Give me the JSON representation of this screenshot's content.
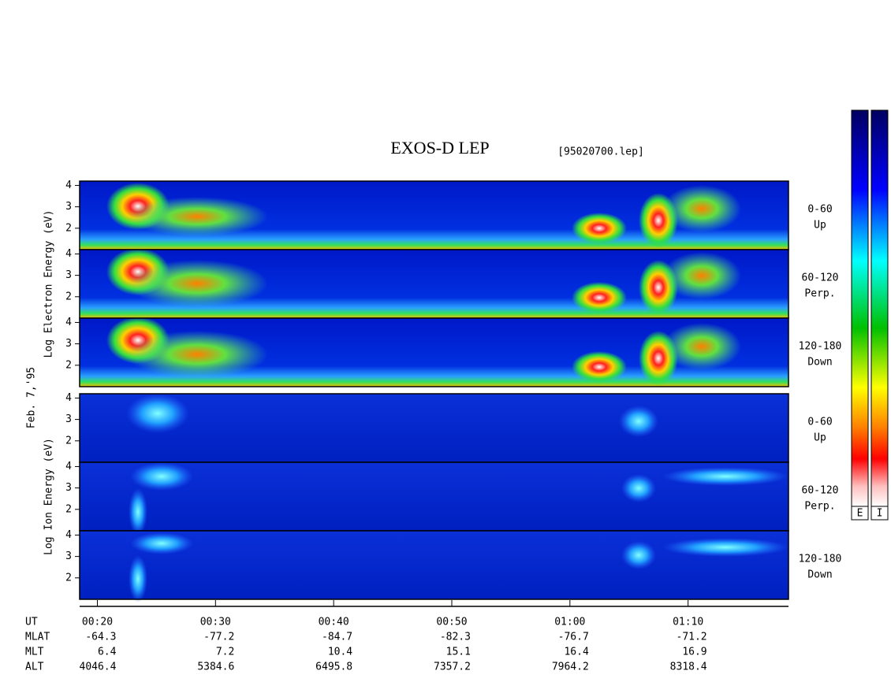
{
  "chart_data": {
    "type": "spectrogram",
    "title": "EXOS-D LEP",
    "file": "[95020700.lep]",
    "date": "Feb. 7,'95",
    "groups": [
      {
        "label": "Log Electron Energy (eV)",
        "panels": [
          {
            "pitch": "0-60",
            "direction": "Up",
            "ylim": [
              1,
              4.2
            ],
            "yticks": [
              2,
              3,
              4
            ]
          },
          {
            "pitch": "60-120",
            "direction": "Perp.",
            "ylim": [
              1,
              4.2
            ],
            "yticks": [
              2,
              3,
              4
            ]
          },
          {
            "pitch": "120-180",
            "direction": "Down",
            "ylim": [
              1,
              4.2
            ],
            "yticks": [
              2,
              3,
              4
            ]
          }
        ]
      },
      {
        "label": "Log Ion Energy (eV)",
        "panels": [
          {
            "pitch": "0-60",
            "direction": "Up",
            "ylim": [
              1,
              4.2
            ],
            "yticks": [
              2,
              3,
              4
            ]
          },
          {
            "pitch": "60-120",
            "direction": "Perp.",
            "ylim": [
              1,
              4.2
            ],
            "yticks": [
              2,
              3,
              4
            ]
          },
          {
            "pitch": "120-180",
            "direction": "Down",
            "ylim": [
              1,
              4.2
            ],
            "yticks": [
              2,
              3,
              4
            ]
          }
        ]
      }
    ],
    "xlim": [
      18.5,
      78.5
    ],
    "xticks": [
      {
        "value": 20,
        "label": "00:20"
      },
      {
        "value": 30,
        "label": "00:30"
      },
      {
        "value": 40,
        "label": "00:40"
      },
      {
        "value": 50,
        "label": "00:50"
      },
      {
        "value": 60,
        "label": "01:00"
      },
      {
        "value": 70,
        "label": "01:10"
      }
    ],
    "ephemeris": [
      {
        "name": "UT"
      },
      {
        "name": "MLAT",
        "values": [
          -64.3,
          -77.2,
          -84.7,
          -82.3,
          -76.7,
          -71.2
        ]
      },
      {
        "name": "MLT",
        "values": [
          6.4,
          7.2,
          10.4,
          15.1,
          16.4,
          16.9
        ]
      },
      {
        "name": "ALT",
        "values": [
          4046.4,
          5384.6,
          6495.8,
          7357.2,
          7964.2,
          8318.4
        ]
      }
    ],
    "colorbars": [
      "E",
      "I"
    ]
  }
}
